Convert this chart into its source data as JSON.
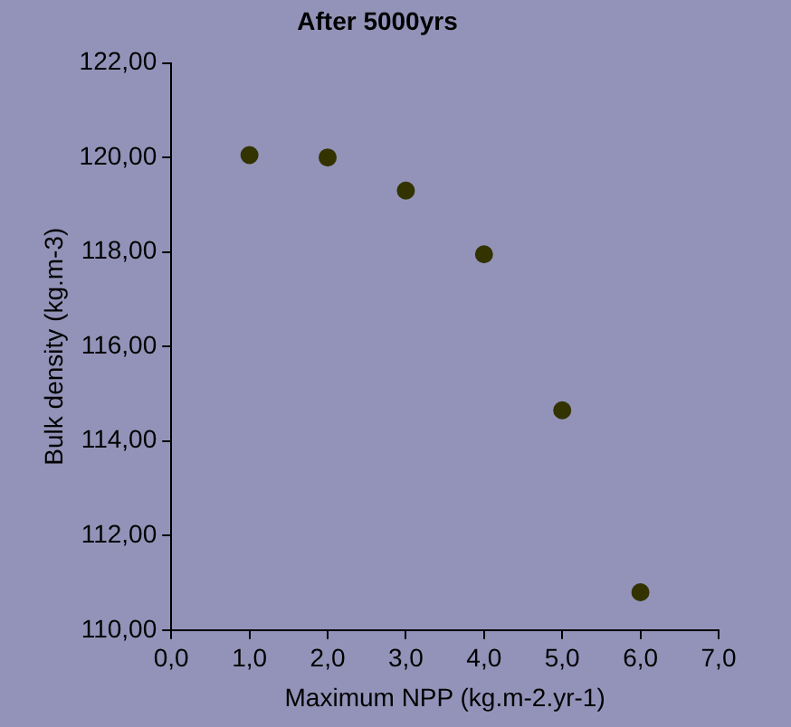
{
  "chart_data": {
    "type": "scatter",
    "title": "After 5000yrs",
    "xlabel": "Maximum NPP (kg.m-2.yr-1)",
    "ylabel": "Bulk density (kg.m-3)",
    "x": [
      1,
      2,
      3,
      4,
      5,
      6
    ],
    "series": [
      {
        "color": "#333300",
        "values": [
          120.05,
          120.0,
          119.3,
          117.95,
          114.65,
          110.8
        ]
      }
    ],
    "xlim": [
      0,
      7
    ],
    "xticks": [
      {
        "value": 0,
        "label": "0,0"
      },
      {
        "value": 1,
        "label": "1,0"
      },
      {
        "value": 2,
        "label": "2,0"
      },
      {
        "value": 3,
        "label": "3,0"
      },
      {
        "value": 4,
        "label": "4,0"
      },
      {
        "value": 5,
        "label": "5,0"
      },
      {
        "value": 6,
        "label": "6,0"
      },
      {
        "value": 7,
        "label": "7,0"
      }
    ],
    "ylim": [
      110,
      122
    ],
    "yticks": [
      {
        "value": 110,
        "label": "110,00"
      },
      {
        "value": 112,
        "label": "112,00"
      },
      {
        "value": 114,
        "label": "114,00"
      },
      {
        "value": 116,
        "label": "116,00"
      },
      {
        "value": 118,
        "label": "118,00"
      },
      {
        "value": 120,
        "label": "120,00"
      },
      {
        "value": 122,
        "label": "122,00"
      }
    ],
    "grid": false,
    "legend": false,
    "marker": "circle"
  }
}
